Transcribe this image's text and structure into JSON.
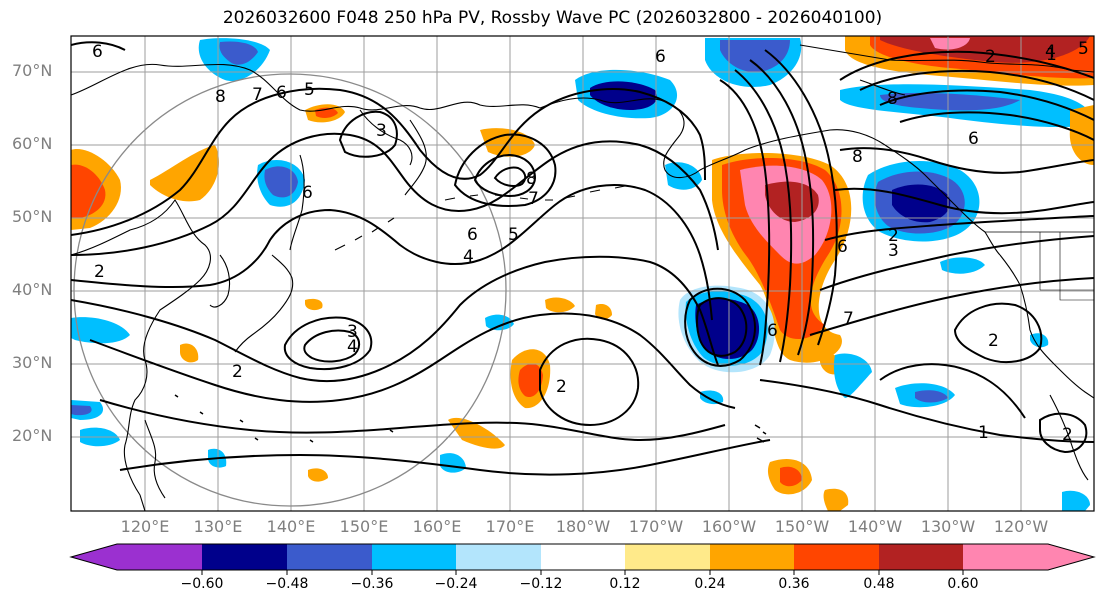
{
  "title": "2026032600 F048 250 hPa PV, Rossby Wave PC (2026032800 - 2026040100)",
  "lat_labels": [
    "70°N",
    "60°N",
    "50°N",
    "40°N",
    "30°N",
    "20°N"
  ],
  "lon_labels": [
    "120°E",
    "130°E",
    "140°E",
    "150°E",
    "160°E",
    "170°E",
    "180°W",
    "170°W",
    "160°W",
    "150°W",
    "140°W",
    "130°W",
    "120°W"
  ],
  "contour_labels": [
    "6",
    "8",
    "7",
    "6",
    "5",
    "6",
    "3",
    "8",
    "7",
    "6",
    "5",
    "4",
    "2",
    "3",
    "4",
    "2",
    "8",
    "6",
    "6",
    "7",
    "1",
    "2",
    "2",
    "6",
    "8",
    "6",
    "2",
    "2",
    "3",
    "1",
    "2",
    "4",
    "5"
  ],
  "colorbar": {
    "colors": [
      "#9b30d0",
      "#00008b",
      "#3b5bcc",
      "#00bfff",
      "#b3e5fc",
      "#ffffff",
      "#ffea8a",
      "#ffa500",
      "#ff4500",
      "#b22222",
      "#ff85b0"
    ],
    "tick_labels": [
      "−0.60",
      "−0.48",
      "−0.36",
      "−0.24",
      "−0.12",
      "0.12",
      "0.24",
      "0.36",
      "0.48",
      "0.60"
    ]
  },
  "colors": {
    "grid": "#9e9e9e",
    "contour": "#000000",
    "coast": "#000000",
    "axis_label": "#7f7f7f"
  }
}
